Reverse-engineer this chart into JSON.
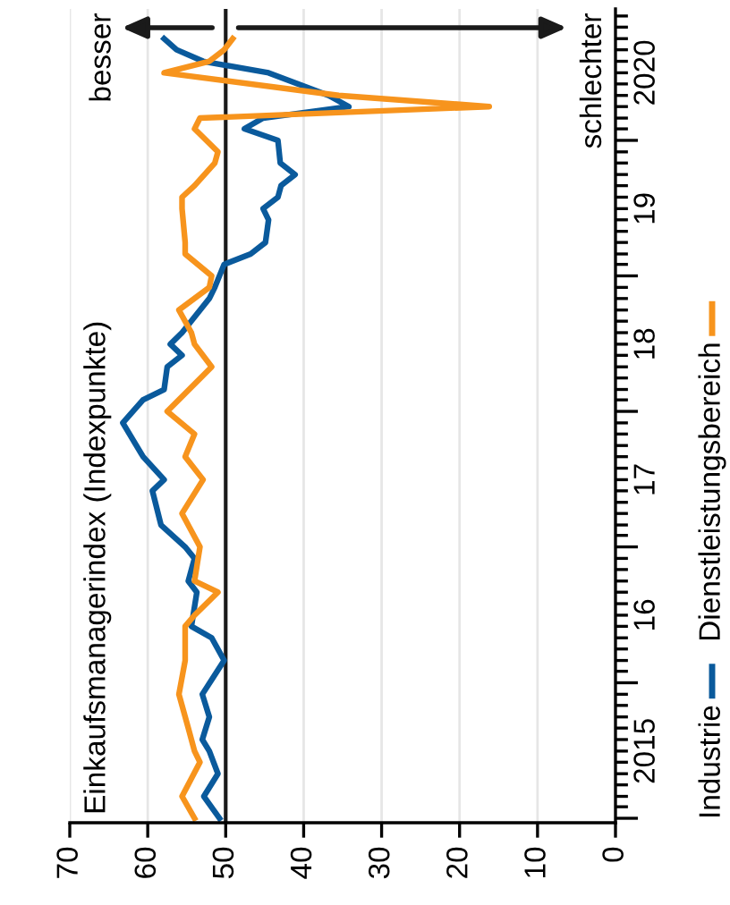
{
  "chart_data": {
    "type": "line",
    "orientation": "horizontal",
    "ylabel": "Einkaufsmanagerindex (Indexpunkte)",
    "annotations": [
      "besser",
      "schlechter"
    ],
    "series": [
      {
        "name": "Industrie",
        "color": "#0a5a9c",
        "x": [
          "2015-01",
          "2015-03",
          "2015-05",
          "2015-07",
          "2015-08",
          "2015-10",
          "2015-12",
          "2016-03",
          "2016-05",
          "2016-06",
          "2016-09",
          "2016-10",
          "2016-12",
          "2017-01",
          "2017-03",
          "2017-06",
          "2017-07",
          "2017-09",
          "2017-12",
          "2018-02",
          "2018-03",
          "2018-05",
          "2018-06",
          "2018-07",
          "2018-08",
          "2018-11",
          "2018-12",
          "2019-02",
          "2019-03",
          "2019-04",
          "2019-06",
          "2019-07",
          "2019-08",
          "2019-09",
          "2019-10",
          "2019-11",
          "2020-01",
          "2020-02",
          "2020-03",
          "2020-04",
          "2020-05",
          "2020-07",
          "2020-08",
          "2020-09",
          "2020-10"
        ],
        "values": [
          50.8,
          52.8,
          51.0,
          52.1,
          53.0,
          52.1,
          53.0,
          50.2,
          51.8,
          54.4,
          53.7,
          54.8,
          54.0,
          55.2,
          58.3,
          59.4,
          57.9,
          60.6,
          63.2,
          60.6,
          57.9,
          57.5,
          55.6,
          57.1,
          55.6,
          52.1,
          51.4,
          50.2,
          46.8,
          44.9,
          44.5,
          45.2,
          43.3,
          42.9,
          41.1,
          43.0,
          43.3,
          47.6,
          45.2,
          34.2,
          36.8,
          44.5,
          52.9,
          56.3,
          57.9
        ]
      },
      {
        "name": "Dienstleistungsbereich",
        "color": "#f7941d",
        "x": [
          "2015-01",
          "2015-03",
          "2015-06",
          "2015-07",
          "2015-09",
          "2015-12",
          "2016-03",
          "2016-06",
          "2016-07",
          "2016-09",
          "2016-10",
          "2017-01",
          "2017-04",
          "2017-07",
          "2017-09",
          "2017-11",
          "2018-01",
          "2018-05",
          "2018-07",
          "2018-08",
          "2018-10",
          "2018-12",
          "2019-01",
          "2019-03",
          "2019-04",
          "2019-07",
          "2019-08",
          "2019-09",
          "2019-11",
          "2019-12",
          "2020-02",
          "2020-03",
          "2020-04",
          "2020-05",
          "2020-07",
          "2020-08",
          "2020-09",
          "2020-10"
        ],
        "values": [
          54.0,
          55.6,
          53.3,
          54.0,
          54.8,
          56.0,
          55.2,
          55.2,
          54.0,
          51.0,
          54.0,
          53.3,
          55.6,
          52.9,
          55.2,
          54.0,
          57.5,
          51.8,
          54.0,
          54.4,
          56.0,
          52.1,
          51.8,
          55.2,
          55.2,
          55.6,
          55.6,
          54.0,
          51.4,
          51.0,
          54.0,
          53.3,
          16.2,
          35.5,
          57.9,
          52.1,
          50.2,
          49.1
        ]
      }
    ],
    "xlim": [
      70,
      0
    ],
    "xticks": [
      0,
      10,
      20,
      30,
      40,
      50,
      60,
      70
    ],
    "ylim": [
      "2014-12-20",
      "2020-12-20"
    ],
    "yticks": [
      {
        "value": "2015-01",
        "label": null
      },
      {
        "value": "2015-07",
        "label": "2015"
      },
      {
        "value": "2016-01",
        "label": null
      },
      {
        "value": "2016-07",
        "label": "16"
      },
      {
        "value": "2017-01",
        "label": null
      },
      {
        "value": "2017-07",
        "label": "17"
      },
      {
        "value": "2018-01",
        "label": null
      },
      {
        "value": "2018-07",
        "label": "18"
      },
      {
        "value": "2019-01",
        "label": null
      },
      {
        "value": "2019-07",
        "label": "19"
      },
      {
        "value": "2020-01",
        "label": null
      },
      {
        "value": "2020-07",
        "label": "2020"
      }
    ],
    "ref_lines": [
      {
        "axis": "x",
        "value": 50,
        "color": "#1a1a1a"
      }
    ],
    "grid": "x",
    "legend": "right"
  }
}
